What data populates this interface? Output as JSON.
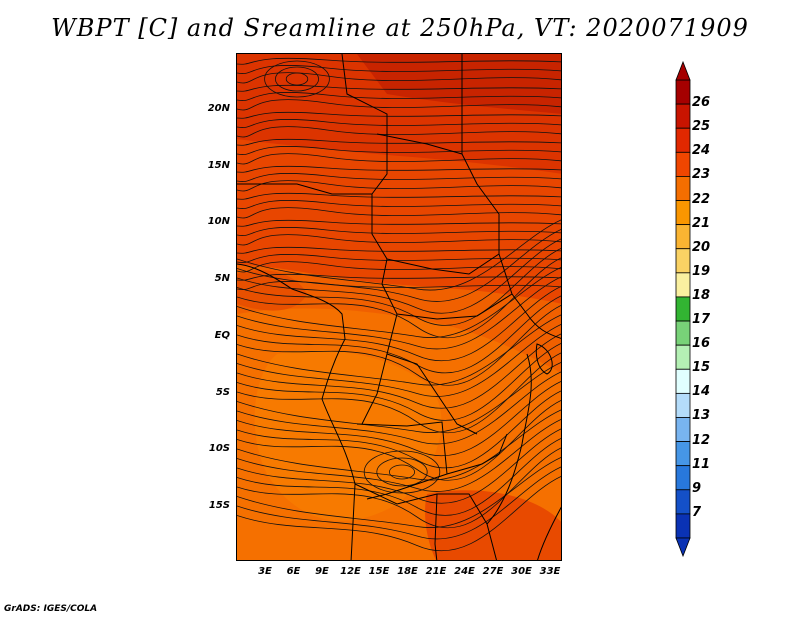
{
  "title": "WBPT [C] and Sreamline at 250hPa, VT: 2020071909",
  "footer": "GrADS: IGES/COLA",
  "map": {
    "lat_ticks": [
      "20N",
      "15N",
      "10N",
      "5N",
      "EQ",
      "5S",
      "10S",
      "15S"
    ],
    "lon_ticks": [
      "3E",
      "6E",
      "9E",
      "12E",
      "15E",
      "18E",
      "21E",
      "24E",
      "27E",
      "30E",
      "33E"
    ]
  },
  "colorbar": {
    "levels": [
      "26",
      "25",
      "24",
      "23",
      "22",
      "21",
      "20",
      "19",
      "18",
      "17",
      "16",
      "15",
      "14",
      "13",
      "12",
      "11",
      "9",
      "7"
    ],
    "colors": [
      "#a50000",
      "#c81400",
      "#e12800",
      "#f04600",
      "#f56e00",
      "#fa9600",
      "#fab432",
      "#fad264",
      "#faf0a0",
      "#32b432",
      "#78d278",
      "#b4f0b4",
      "#e1ffff",
      "#b4dcfa",
      "#78b4f0",
      "#4696e6",
      "#2878dc",
      "#1450c8",
      "#0a32b4"
    ]
  }
}
